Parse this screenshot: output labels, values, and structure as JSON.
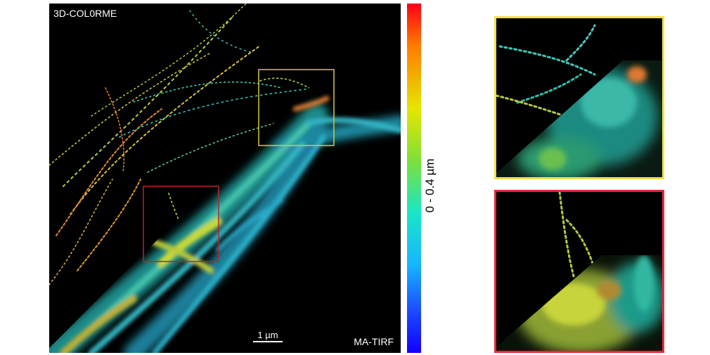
{
  "main_panel": {
    "label_top": "3D-COL0RME",
    "label_bottom": "MA-TIRF",
    "scalebar_label": "1 µm"
  },
  "colorbar": {
    "label": "0 - 0.4 µm",
    "colors": [
      "#ff0018",
      "#ff7a00",
      "#e6e600",
      "#7ee03a",
      "#18e6c8",
      "#18b4ff",
      "#1a4bff",
      "#1200ff"
    ]
  },
  "roi_boxes": {
    "yellow": "#f3e044",
    "red": "#e8283c"
  }
}
